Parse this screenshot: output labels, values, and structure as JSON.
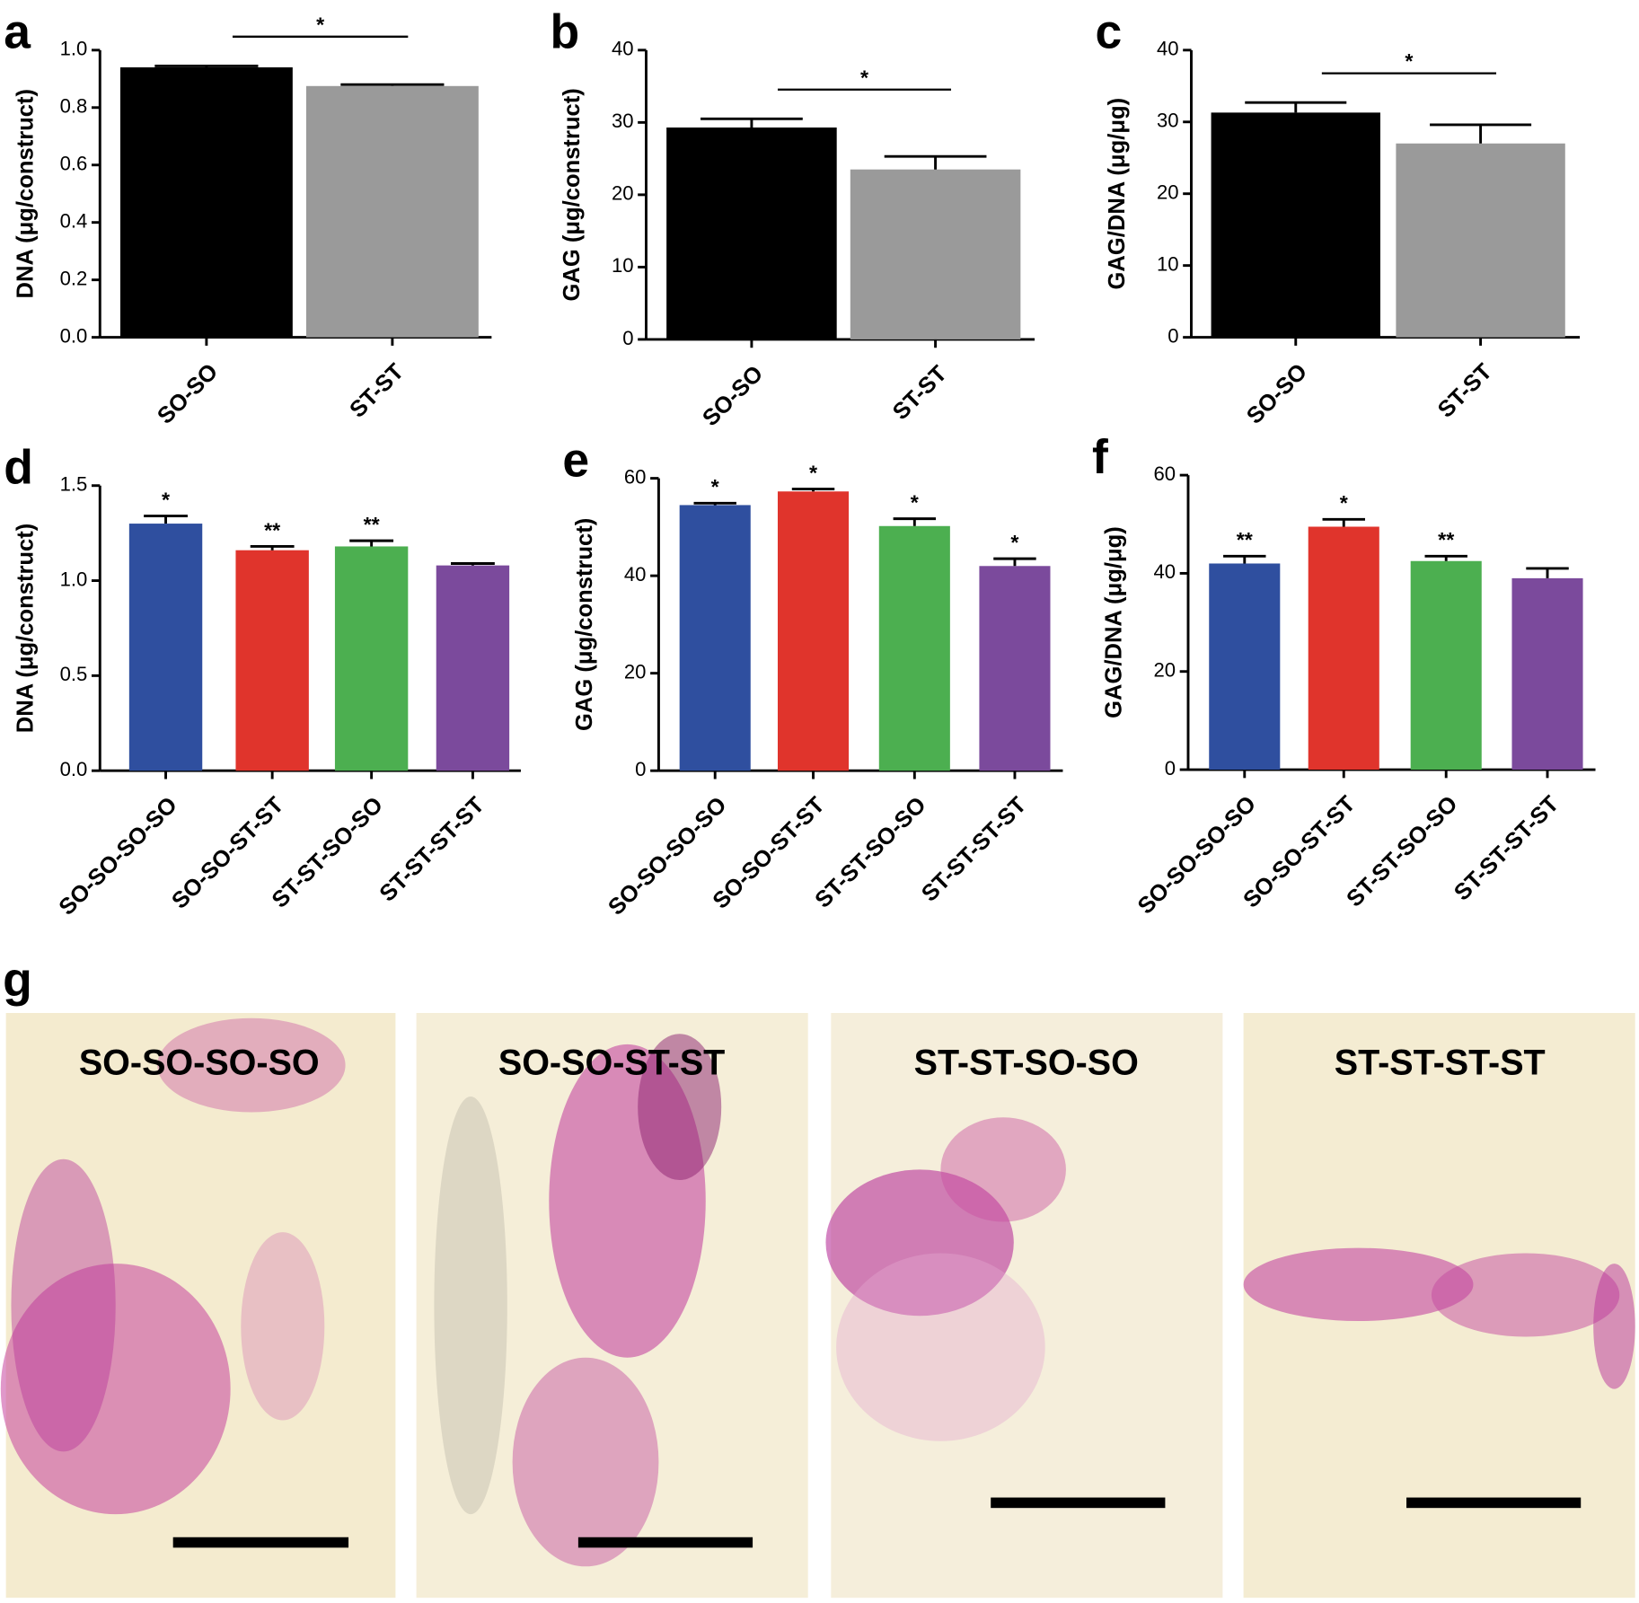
{
  "chart_data": [
    {
      "type": "bar",
      "panel_label": "a",
      "ylabel": "DNA (μg/construct)",
      "categories": [
        "SO-SO",
        "ST-ST"
      ],
      "values": [
        0.94,
        0.875
      ],
      "errors": [
        0.005,
        0.005
      ],
      "colors": [
        "#000000",
        "#9a9a9a"
      ],
      "ylim": [
        0,
        1.0
      ],
      "yticks": [
        {
          "value": 0,
          "label": "0.0"
        },
        0.2,
        0.4,
        0.6,
        0.8,
        {
          "value": 1.0,
          "label": "1.0"
        }
      ],
      "comparison": "*"
    },
    {
      "type": "bar",
      "panel_label": "b",
      "ylabel": "GAG (μg/construct)",
      "categories": [
        "SO-SO",
        "ST-ST"
      ],
      "values": [
        29.3,
        23.5
      ],
      "errors": [
        1.2,
        1.8
      ],
      "colors": [
        "#000000",
        "#9a9a9a"
      ],
      "ylim": [
        0,
        40
      ],
      "yticks": [
        0,
        10,
        20,
        30,
        40
      ],
      "comparison": "*"
    },
    {
      "type": "bar",
      "panel_label": "c",
      "ylabel": "GAG/DNA (μg/μg)",
      "categories": [
        "SO-SO",
        "ST-ST"
      ],
      "values": [
        31.3,
        27.0
      ],
      "errors": [
        1.4,
        2.6
      ],
      "colors": [
        "#000000",
        "#9a9a9a"
      ],
      "ylim": [
        0,
        40
      ],
      "yticks": [
        0,
        10,
        20,
        30,
        40
      ],
      "comparison": "*"
    },
    {
      "type": "bar",
      "panel_label": "d",
      "ylabel": "DNA (μg/construct)",
      "categories": [
        "SO-SO-SO-SO",
        "SO-SO-ST-ST",
        "ST-ST-SO-SO",
        "ST-ST-ST-ST"
      ],
      "values": [
        1.3,
        1.16,
        1.18,
        1.08
      ],
      "errors": [
        0.04,
        0.02,
        0.03,
        0.01
      ],
      "colors": [
        "#2f4f9f",
        "#e0342c",
        "#4caf50",
        "#7b4a9c"
      ],
      "ylim": [
        0,
        1.5
      ],
      "yticks": [
        {
          "value": 0,
          "label": "0.0"
        },
        0.5,
        {
          "value": 1.0,
          "label": "1.0"
        },
        1.5
      ],
      "significance": [
        "*",
        "**",
        "**",
        null
      ]
    },
    {
      "type": "bar",
      "panel_label": "e",
      "ylabel": "GAG (μg/construct)",
      "categories": [
        "SO-SO-SO-SO",
        "SO-SO-ST-ST",
        "ST-ST-SO-SO",
        "ST-ST-ST-ST"
      ],
      "values": [
        54.5,
        57.3,
        50.2,
        42.0
      ],
      "errors": [
        0.4,
        0.5,
        1.5,
        1.5
      ],
      "colors": [
        "#2f4f9f",
        "#e0342c",
        "#4caf50",
        "#7b4a9c"
      ],
      "ylim": [
        0,
        60
      ],
      "yticks": [
        0,
        20,
        40,
        60
      ],
      "significance": [
        "*",
        "*",
        "*",
        "*"
      ]
    },
    {
      "type": "bar",
      "panel_label": "f",
      "ylabel": "GAG/DNA (μg/μg)",
      "categories": [
        "SO-SO-SO-SO",
        "SO-SO-ST-ST",
        "ST-ST-SO-SO",
        "ST-ST-ST-ST"
      ],
      "values": [
        42.0,
        49.5,
        42.5,
        39.0
      ],
      "errors": [
        1.5,
        1.5,
        1.0,
        2.0
      ],
      "colors": [
        "#2f4f9f",
        "#e0342c",
        "#4caf50",
        "#7b4a9c"
      ],
      "ylim": [
        0,
        60
      ],
      "yticks": [
        0,
        20,
        40,
        60
      ],
      "significance": [
        "**",
        "*",
        "**",
        null
      ]
    }
  ],
  "images": {
    "panel_label": "g",
    "panels": [
      "SO-SO-SO-SO",
      "SO-SO-ST-ST",
      "ST-ST-SO-SO",
      "ST-ST-ST-ST"
    ]
  }
}
